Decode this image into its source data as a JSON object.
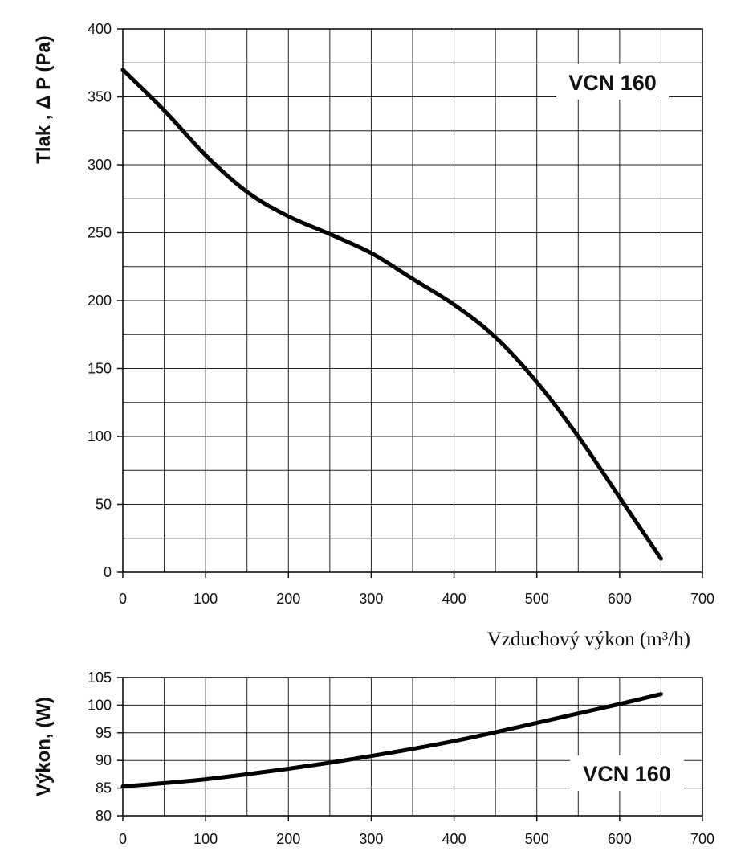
{
  "chart_data": [
    {
      "type": "line",
      "title": "VCN 160",
      "xlabel": "Vzduchový výkon (m³/h)",
      "ylabel": "Tlak , Δ P (Pa)",
      "xlim": [
        0,
        700
      ],
      "ylim": [
        0,
        400
      ],
      "x_ticks": [
        0,
        100,
        200,
        300,
        400,
        500,
        600,
        700
      ],
      "y_ticks": [
        0,
        50,
        100,
        150,
        200,
        250,
        300,
        350,
        400
      ],
      "grid": true,
      "series": [
        {
          "x": [
            0,
            50,
            100,
            150,
            200,
            250,
            300,
            350,
            400,
            450,
            500,
            550,
            600,
            650
          ],
          "y": [
            370,
            340,
            307,
            280,
            262,
            249,
            235,
            216,
            197,
            173,
            140,
            100,
            55,
            10
          ]
        }
      ]
    },
    {
      "type": "line",
      "title": "VCN 160",
      "xlabel": "",
      "ylabel": "Výkon, (W)",
      "xlim": [
        0,
        700
      ],
      "ylim": [
        80,
        105
      ],
      "x_ticks": [
        0,
        100,
        200,
        300,
        400,
        500,
        600,
        700
      ],
      "y_ticks": [
        80,
        85,
        90,
        95,
        100,
        105
      ],
      "grid": true,
      "series": [
        {
          "x": [
            0,
            50,
            100,
            150,
            200,
            250,
            300,
            350,
            400,
            450,
            500,
            550,
            600,
            650
          ],
          "y": [
            85.3,
            85.9,
            86.6,
            87.5,
            88.5,
            89.6,
            90.8,
            92.1,
            93.5,
            95.1,
            96.8,
            98.5,
            100.2,
            102
          ]
        }
      ]
    }
  ]
}
